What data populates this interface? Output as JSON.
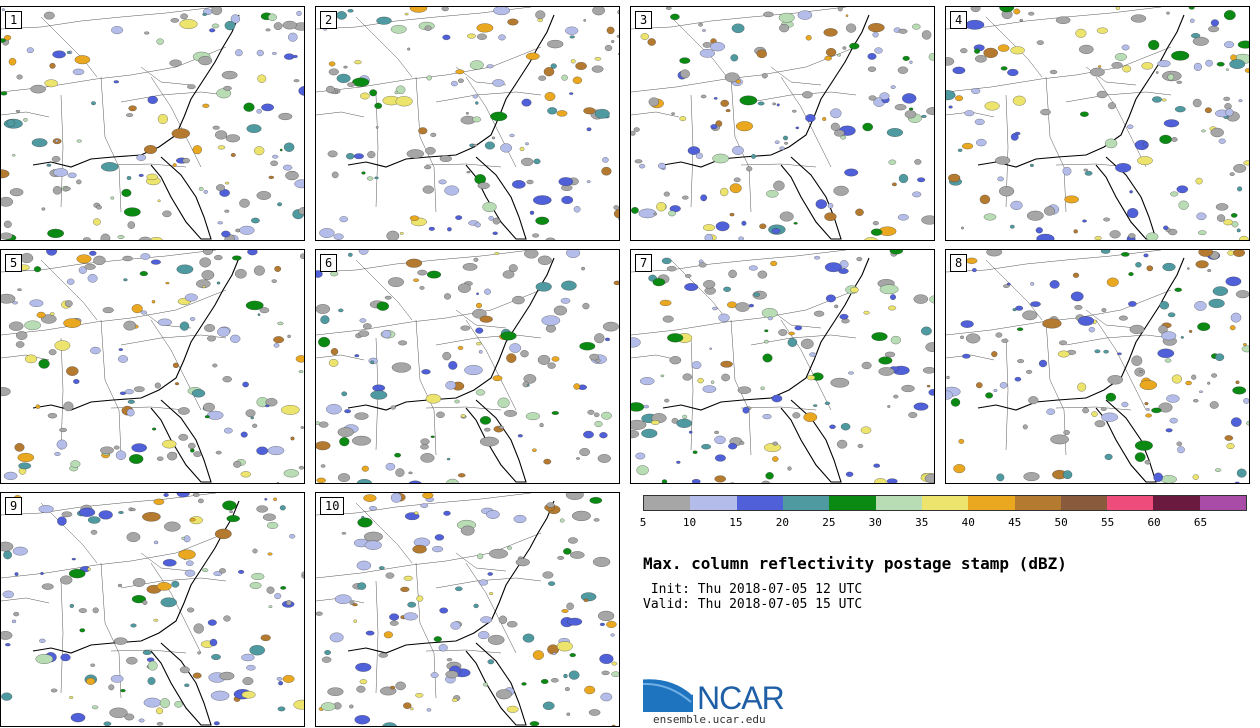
{
  "panels": [
    {
      "label": "1"
    },
    {
      "label": "2"
    },
    {
      "label": "3"
    },
    {
      "label": "4"
    },
    {
      "label": "5"
    },
    {
      "label": "6"
    },
    {
      "label": "7"
    },
    {
      "label": "8"
    },
    {
      "label": "9"
    },
    {
      "label": "10"
    }
  ],
  "colorbar": {
    "ticks": [
      "5",
      "10",
      "15",
      "20",
      "25",
      "30",
      "35",
      "40",
      "45",
      "50",
      "55",
      "60",
      "65"
    ],
    "colors": [
      "#a6a6a6",
      "#b4bdea",
      "#5060d8",
      "#4f9aa0",
      "#0a8a12",
      "#b8dcb4",
      "#ece46c",
      "#eaa820",
      "#b47a30",
      "#8a5a3c",
      "#ee4c7a",
      "#6a1a3e",
      "#a84ca8"
    ]
  },
  "title": "Max. column reflectivity postage stamp (dBZ)",
  "init": " Init: Thu 2018-07-05 12 UTC",
  "valid": "Valid: Thu 2018-07-05 15 UTC",
  "logo": {
    "text": "NCAR",
    "site": "ensemble.ucar.edu",
    "color": "#1f5fa6"
  }
}
